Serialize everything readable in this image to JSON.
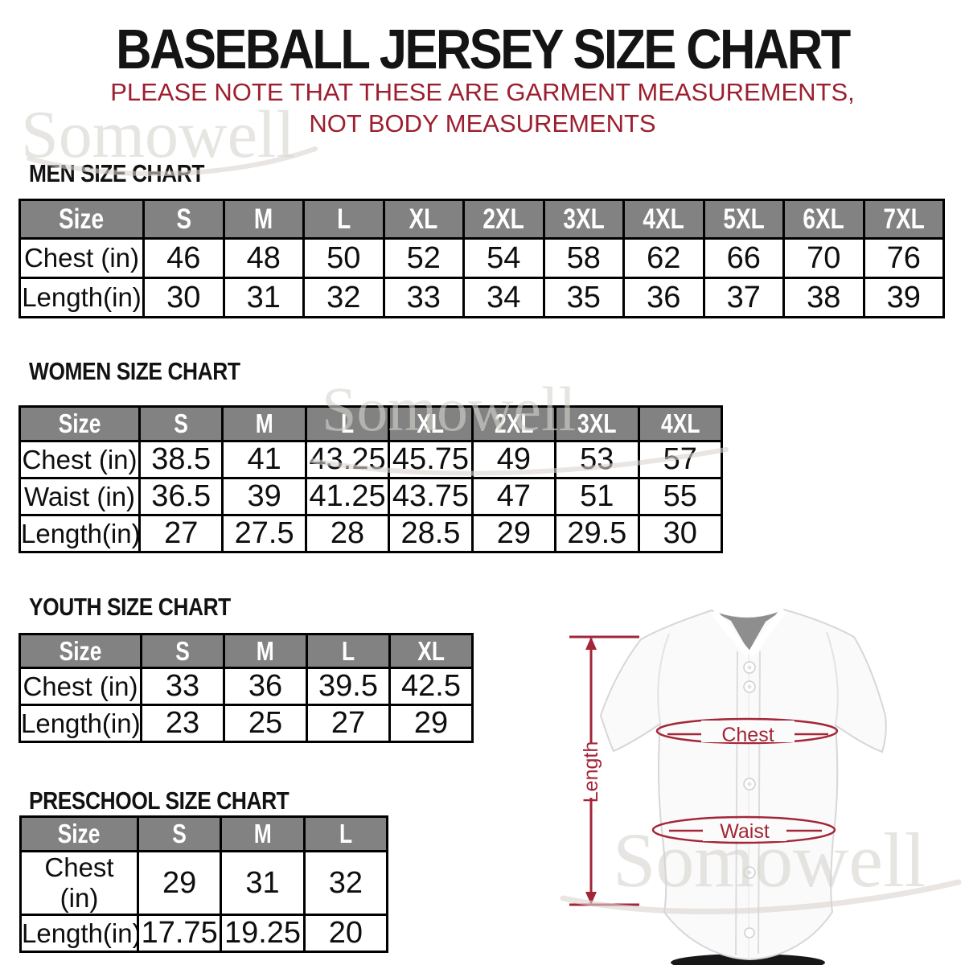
{
  "header": {
    "title": "BASEBALL JERSEY SIZE CHART",
    "subtitle_line1": "PLEASE NOTE THAT THESE ARE GARMENT MEASUREMENTS,",
    "subtitle_line2": "NOT BODY MEASUREMENTS"
  },
  "watermark": {
    "brand": "Somowell"
  },
  "colors": {
    "title_black": "#141414",
    "subtitle_red": "#9C1F30",
    "annotation_red": "#A32638",
    "table_header_gray": "#828282",
    "table_border_black": "#000000",
    "watermark_gray": "#D8D4D0"
  },
  "tables": {
    "men": {
      "heading": "MEN SIZE CHART",
      "header": [
        "Size",
        "S",
        "M",
        "L",
        "XL",
        "2XL",
        "3XL",
        "4XL",
        "5XL",
        "6XL",
        "7XL"
      ],
      "rows": [
        [
          "Chest (in)",
          "46",
          "48",
          "50",
          "52",
          "54",
          "58",
          "62",
          "66",
          "70",
          "76"
        ],
        [
          "Length(in)",
          "30",
          "31",
          "32",
          "33",
          "34",
          "35",
          "36",
          "37",
          "38",
          "39"
        ]
      ]
    },
    "women": {
      "heading": "WOMEN SIZE CHART",
      "header": [
        "Size",
        "S",
        "M",
        "L",
        "XL",
        "2XL",
        "3XL",
        "4XL"
      ],
      "rows": [
        [
          "Chest (in)",
          "38.5",
          "41",
          "43.25",
          "45.75",
          "49",
          "53",
          "57"
        ],
        [
          "Waist (in)",
          "36.5",
          "39",
          "41.25",
          "43.75",
          "47",
          "51",
          "55"
        ],
        [
          "Length(in)",
          "27",
          "27.5",
          "28",
          "28.5",
          "29",
          "29.5",
          "30"
        ]
      ]
    },
    "youth": {
      "heading": "YOUTH SIZE CHART",
      "header": [
        "Size",
        "S",
        "M",
        "L",
        "XL"
      ],
      "rows": [
        [
          "Chest (in)",
          "33",
          "36",
          "39.5",
          "42.5"
        ],
        [
          "Length(in)",
          "23",
          "25",
          "27",
          "29"
        ]
      ]
    },
    "preschool": {
      "heading": "PRESCHOOL SIZE CHART",
      "header": [
        "Size",
        "S",
        "M",
        "L"
      ],
      "rows": [
        [
          "Chest (in)",
          "29",
          "31",
          "32"
        ],
        [
          "Length(in)",
          "17.75",
          "19.25",
          "20"
        ]
      ]
    }
  },
  "diagram": {
    "length_label": "Length",
    "chest_label": "Chest",
    "waist_label": "Waist"
  }
}
